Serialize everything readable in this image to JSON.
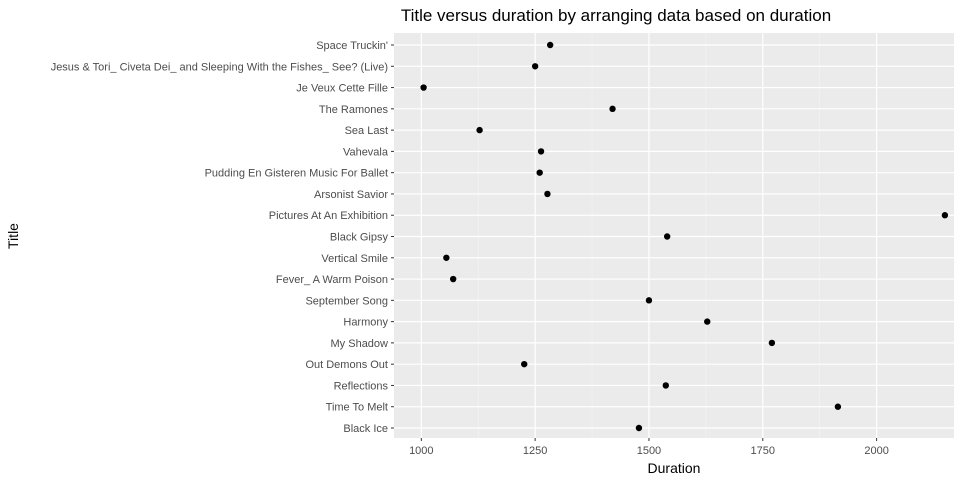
{
  "chart_data": {
    "type": "scatter",
    "title": "Title versus duration by arranging data based on duration",
    "xlabel": "Duration",
    "ylabel": "Title",
    "xlim": [
      940,
      2170
    ],
    "xticks": [
      1000,
      1250,
      1500,
      1750,
      2000
    ],
    "grid": true,
    "background": "#ebebeb",
    "point_color": "#000000",
    "categories": [
      "Space Truckin'",
      "Jesus & Tori_ Civeta Dei_ and Sleeping With the Fishes_ See? (Live)",
      "Je Veux Cette Fille",
      "The Ramones",
      "Sea Last",
      "Vahevala",
      "Pudding En Gisteren Music For Ballet",
      "Arsonist Savior",
      "Pictures At An Exhibition",
      "Black Gipsy",
      "Vertical Smile",
      "Fever_ A Warm Poison",
      "September Song",
      "Harmony",
      "My Shadow",
      "Out Demons Out",
      "Reflections",
      "Time To Melt",
      "Black Ice"
    ],
    "values": [
      1283,
      1250,
      1005,
      1420,
      1128,
      1263,
      1260,
      1277,
      2150,
      1540,
      1055,
      1070,
      1500,
      1628,
      1770,
      1226,
      1537,
      1915,
      1478
    ]
  }
}
